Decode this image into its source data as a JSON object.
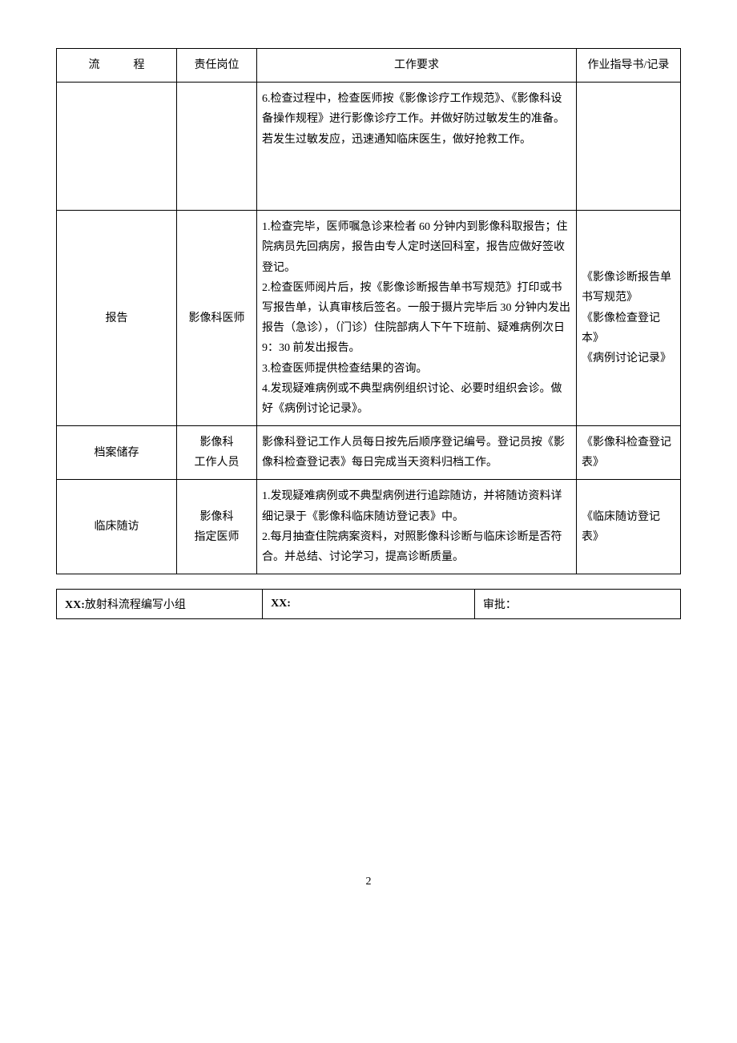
{
  "table": {
    "headers": {
      "process": "流",
      "process2": "程",
      "role": "责任岗位",
      "desc": "工作要求",
      "guide": "作业指导书/记录"
    },
    "rows": [
      {
        "process": "",
        "role": "",
        "desc": "6.检查过程中，检查医师按《影像诊疗工作规范》、《影像科设备操作规程》进行影像诊疗工作。并做好防过敏发生的准备。若发生过敏发应，迅速通知临床医生，做好抢救工作。",
        "guide": ""
      },
      {
        "process": "报告",
        "role": "影像科医师",
        "desc": "1.检查完毕，医师嘱急诊来检者 60 分钟内到影像科取报告；住院病员先回病房，报告由专人定时送回科室，报告应做好签收登记。\n2.检查医师阅片后，按《影像诊断报告单书写规范》打印或书写报告单，认真审核后签名。一般于摄片完毕后 30 分钟内发出报告（急诊），（门诊）住院部病人下午下班前、疑难病例次日 9：30 前发出报告。\n3.检查医师提供检查结果的咨询。\n4.发现疑难病例或不典型病例组织讨论、必要时组织会诊。做好《病例讨论记录》。",
        "guide": "《影像诊断报告单书写规范》\n《影像检查登记本》\n《病例讨论记录》"
      },
      {
        "process": "档案储存",
        "role": "影像科\n工作人员",
        "desc": "影像科登记工作人员每日按先后顺序登记编号。登记员按《影像科检查登记表》每日完成当天资料归档工作。",
        "guide": "《影像科检查登记表》"
      },
      {
        "process": "临床随访",
        "role": "影像科\n指定医师",
        "desc": "1.发现疑难病例或不典型病例进行追踪随访，并将随访资料详细记录于《影像科临床随访登记表》中。\n2.每月抽查住院病案资料，对照影像科诊断与临床诊断是否符合。并总结、讨论学习，提高诊断质量。",
        "guide": "《临床随访登记表》"
      }
    ]
  },
  "footer": {
    "col1_prefix": "XX:",
    "col1_text": "放射科流程编写小组",
    "col2_prefix": "XX:",
    "col3_text": "审批："
  },
  "page_number": "2"
}
